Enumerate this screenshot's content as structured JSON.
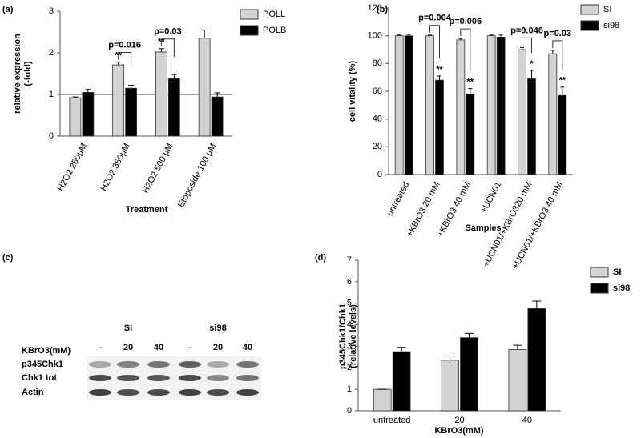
{
  "panel_labels": [
    "(a)",
    "(b)",
    "(c)",
    "(d)"
  ],
  "chart_data": [
    {
      "type": "bar",
      "y_label": [
        "relative expression",
        "(-fold)"
      ],
      "x_label": "Treatment",
      "categories": [
        "H2O2 250µM",
        "H2O2 350µM",
        "H2O2 500 µM",
        "Etoposide 100 µM"
      ],
      "series": [
        {
          "name": "POLL",
          "color": "#d3d3d3",
          "values": [
            0.92,
            1.71,
            2.02,
            2.35
          ],
          "errors": [
            0.02,
            0.07,
            0.08,
            0.2
          ]
        },
        {
          "name": "POLB",
          "color": "#000000",
          "values": [
            1.05,
            1.15,
            1.38,
            0.94
          ],
          "errors": [
            0.07,
            0.07,
            0.1,
            0.1
          ]
        }
      ],
      "ylim": [
        0,
        3
      ],
      "yticks": [
        0,
        1,
        2,
        3
      ],
      "reference_line": 1,
      "legend": "right",
      "stars": [
        {
          "category": 1,
          "series": 0,
          "text": "**"
        },
        {
          "category": 2,
          "series": 0,
          "text": "**"
        }
      ],
      "p_values": [
        {
          "category": 1,
          "text": "p=0.016"
        },
        {
          "category": 2,
          "text": "p=0.03"
        }
      ]
    },
    {
      "type": "bar",
      "y_label": [
        "cell vitality (%)"
      ],
      "x_label": "Samples",
      "categories": [
        "untreated",
        "+KBrO3 20 mM",
        "+KBrO3 40 mM",
        "+UCN01",
        "+UCN01/+KBrO320 mM",
        "+UCN01/+KBrO3 40 mM"
      ],
      "series": [
        {
          "name": "SI",
          "color": "#d3d3d3",
          "values": [
            100,
            100,
            97,
            100,
            90,
            87
          ],
          "errors": [
            0.5,
            0.5,
            1,
            0.5,
            1.5,
            2.5
          ]
        },
        {
          "name": "si98",
          "color": "#000000",
          "values": [
            100,
            68,
            58,
            99,
            69,
            57
          ],
          "errors": [
            1,
            3,
            4,
            1.5,
            6,
            6
          ]
        }
      ],
      "ylim": [
        0,
        120
      ],
      "yticks": [
        0,
        20,
        40,
        60,
        80,
        100,
        120
      ],
      "legend": "right",
      "stars": [
        {
          "category": 1,
          "series": 1,
          "text": "**"
        },
        {
          "category": 2,
          "series": 1,
          "text": "**"
        },
        {
          "category": 4,
          "series": 1,
          "text": "*"
        },
        {
          "category": 5,
          "series": 1,
          "text": "**"
        }
      ],
      "p_values": [
        {
          "category": 1,
          "text": "p=0.004"
        },
        {
          "category": 2,
          "text": "p=0.006"
        },
        {
          "category": 4,
          "text": "p=0.046"
        },
        {
          "category": 5,
          "text": "p=0.03"
        }
      ]
    },
    {
      "type": "bar",
      "y_label": [
        "p345Chk1/Chk1",
        "(relative levels)"
      ],
      "x_label": "KBrO3(mM)",
      "categories": [
        "untreated",
        "20",
        "40"
      ],
      "series": [
        {
          "name": "SI",
          "color": "#d3d3d3",
          "values": [
            1,
            2.35,
            2.85
          ],
          "errors": [
            0,
            0.2,
            0.2
          ]
        },
        {
          "name": "si98",
          "color": "#000000",
          "values": [
            2.75,
            3.4,
            4.75
          ],
          "errors": [
            0.2,
            0.2,
            0.35
          ]
        }
      ],
      "ylim": [
        0,
        7
      ],
      "yticks": [
        0,
        1,
        2,
        3,
        4,
        5,
        6,
        7
      ],
      "legend": "right"
    }
  ],
  "blot": {
    "groups": [
      "SI",
      "si98"
    ],
    "rows": [
      "KBrO3(mM)",
      "p345Chk1",
      "Chk1 tot",
      "Actin"
    ],
    "lanes": [
      "-",
      "20",
      "40",
      "-",
      "20",
      "40"
    ]
  }
}
